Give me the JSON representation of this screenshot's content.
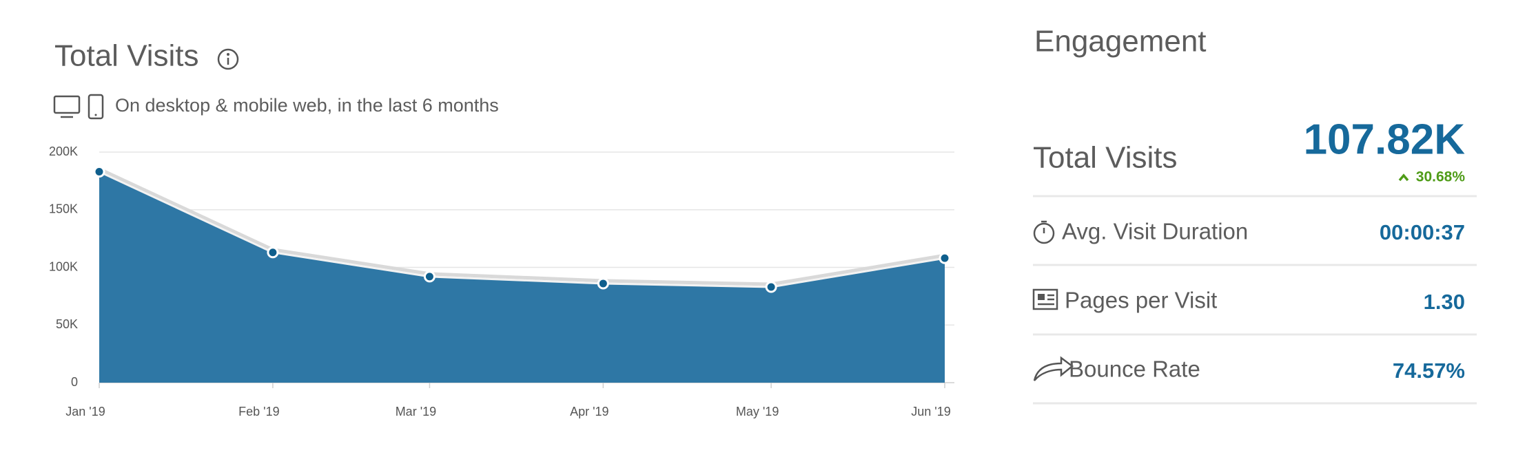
{
  "header": {
    "title": "Total Visits",
    "subtitle": "On desktop & mobile web, in the last 6 months"
  },
  "chart_data": {
    "type": "area",
    "x": [
      "Jan '19",
      "Feb '19",
      "Mar '19",
      "Apr '19",
      "May '19",
      "Jun '19"
    ],
    "values": [
      183000,
      113000,
      92000,
      86000,
      83000,
      108000
    ],
    "color": "#2e77a5",
    "point_color": "#0f5f8d",
    "ylim": [
      0,
      200000
    ],
    "yticks": [
      0,
      {
        "value": 50000,
        "label": "50K"
      },
      {
        "value": 100000,
        "label": "100K"
      },
      {
        "value": 150000,
        "label": "150K"
      },
      {
        "value": 200000,
        "label": "200K"
      }
    ],
    "grid": true
  },
  "engagement": {
    "title": "Engagement",
    "total_visits": {
      "label": "Total Visits",
      "value": "107.82K",
      "change": "30.68%"
    },
    "metrics": [
      {
        "label": "Avg. Visit Duration",
        "value": "00:00:37"
      },
      {
        "label": "Pages per Visit",
        "value": "1.30"
      },
      {
        "label": "Bounce Rate",
        "value": "74.57%"
      }
    ]
  }
}
